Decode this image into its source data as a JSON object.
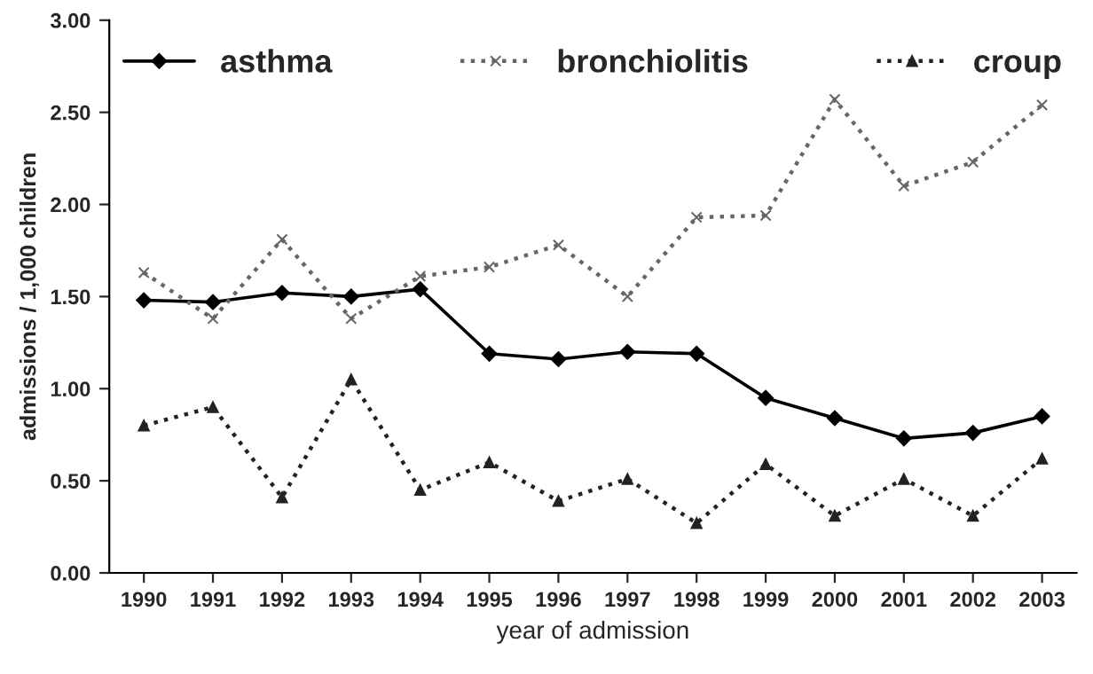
{
  "chart_data": {
    "type": "line",
    "xlabel": "year of admission",
    "ylabel": "admissions / 1,000 children",
    "categories": [
      "1990",
      "1991",
      "1992",
      "1993",
      "1994",
      "1995",
      "1996",
      "1997",
      "1998",
      "1999",
      "2000",
      "2001",
      "2002",
      "2003"
    ],
    "series": [
      {
        "name": "asthma",
        "color": "#000000",
        "marker": "diamond",
        "line_style": "solid",
        "values": [
          1.48,
          1.47,
          1.52,
          1.5,
          1.54,
          1.19,
          1.16,
          1.2,
          1.19,
          0.95,
          0.84,
          0.73,
          0.76,
          0.85
        ]
      },
      {
        "name": "bronchiolitis",
        "color": "#666666",
        "marker": "cross",
        "line_style": "dotted",
        "values": [
          1.63,
          1.38,
          1.81,
          1.38,
          1.61,
          1.66,
          1.78,
          1.5,
          1.93,
          1.94,
          2.57,
          2.1,
          2.23,
          2.54
        ]
      },
      {
        "name": "croup",
        "color": "#222222",
        "marker": "triangle",
        "line_style": "dotted",
        "values": [
          0.8,
          0.9,
          0.41,
          1.05,
          0.45,
          0.6,
          0.39,
          0.51,
          0.27,
          0.59,
          0.31,
          0.51,
          0.31,
          0.62
        ]
      }
    ],
    "ylim": [
      0,
      3
    ],
    "yticks": [
      {
        "value": 0,
        "label": "0.00"
      },
      {
        "value": 0.5,
        "label": "0.50"
      },
      {
        "value": 1,
        "label": "1.00"
      },
      {
        "value": 1.5,
        "label": "1.50"
      },
      {
        "value": 2,
        "label": "2.00"
      },
      {
        "value": 2.5,
        "label": "2.50"
      },
      {
        "value": 3,
        "label": "3.00"
      }
    ],
    "grid": false,
    "legend": "top"
  }
}
